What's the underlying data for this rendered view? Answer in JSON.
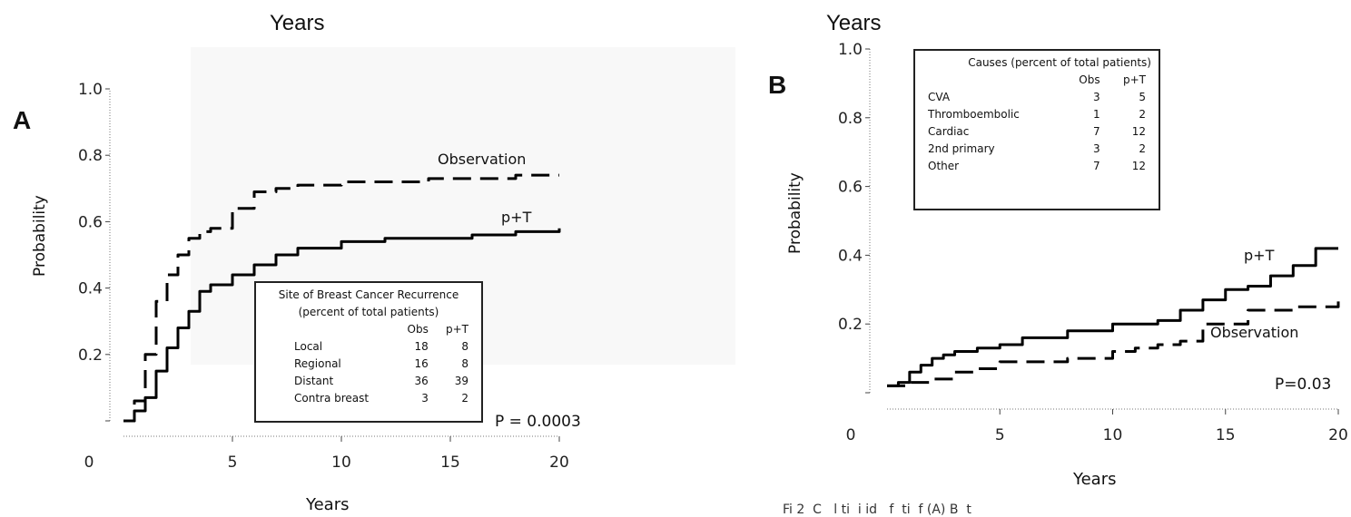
{
  "figure": {
    "top_title_left": "Years",
    "top_title_right": "Years",
    "caption_fragment": "Fi 2  C   l ti  i id   f  ti  f (A) B  t       "
  },
  "chart_data": [
    {
      "panel": "A",
      "type": "line",
      "xlabel": "Years",
      "ylabel": "Probability",
      "xlim": [
        0,
        20
      ],
      "ylim": [
        0,
        1.0
      ],
      "x_ticks": [
        "0",
        "5",
        "10",
        "15",
        "20"
      ],
      "y_ticks": [
        "0.2",
        "0.4",
        "0.6",
        "0.8",
        "1.0"
      ],
      "p_value": "P = 0.0003",
      "series": [
        {
          "name": "Observation",
          "style": "dashed",
          "x": [
            0,
            0.5,
            1,
            1.5,
            2,
            2.5,
            3,
            3.5,
            4,
            5,
            6,
            7,
            8,
            10,
            12,
            14,
            16,
            18,
            20
          ],
          "y": [
            0,
            0.06,
            0.2,
            0.36,
            0.44,
            0.5,
            0.55,
            0.57,
            0.58,
            0.64,
            0.69,
            0.7,
            0.71,
            0.72,
            0.72,
            0.73,
            0.73,
            0.74,
            0.74
          ]
        },
        {
          "name": "p+T",
          "style": "solid",
          "x": [
            0,
            0.5,
            1,
            1.5,
            2,
            2.5,
            3,
            3.5,
            4,
            5,
            6,
            7,
            8,
            10,
            12,
            14,
            16,
            18,
            20
          ],
          "y": [
            0,
            0.03,
            0.07,
            0.15,
            0.22,
            0.28,
            0.33,
            0.39,
            0.41,
            0.44,
            0.47,
            0.5,
            0.52,
            0.54,
            0.55,
            0.55,
            0.56,
            0.57,
            0.58
          ]
        }
      ],
      "legend_box": {
        "title": "Site of Breast Cancer Recurrence",
        "subtitle": "(percent of total patients)",
        "col_obs": "Obs",
        "col_pt": "p+T",
        "rows": [
          {
            "label": "Local",
            "obs": "18",
            "pt": "8"
          },
          {
            "label": "Regional",
            "obs": "16",
            "pt": "8"
          },
          {
            "label": "Distant",
            "obs": "36",
            "pt": "39"
          },
          {
            "label": "Contra breast",
            "obs": "3",
            "pt": "2"
          }
        ]
      }
    },
    {
      "panel": "B",
      "type": "line",
      "xlabel": "Years",
      "ylabel": "Probability",
      "xlim": [
        0,
        20
      ],
      "ylim": [
        0,
        1.0
      ],
      "x_ticks": [
        "0",
        "5",
        "10",
        "15",
        "20"
      ],
      "y_ticks": [
        "0.2",
        "0.4",
        "0.6",
        "0.8",
        "1.0"
      ],
      "p_value": "P=0.03",
      "series": [
        {
          "name": "Observation",
          "style": "dashed",
          "x": [
            0,
            1,
            2,
            3,
            4,
            5,
            6,
            8,
            10,
            11,
            12,
            13,
            14,
            16,
            18,
            20
          ],
          "y": [
            0.02,
            0.03,
            0.04,
            0.06,
            0.07,
            0.09,
            0.09,
            0.1,
            0.12,
            0.13,
            0.14,
            0.15,
            0.2,
            0.24,
            0.25,
            0.28
          ]
        },
        {
          "name": "p+T",
          "style": "solid",
          "x": [
            0,
            0.5,
            1,
            1.5,
            2,
            2.5,
            3,
            4,
            5,
            6,
            8,
            10,
            12,
            13,
            14,
            15,
            16,
            17,
            18,
            19,
            20
          ],
          "y": [
            0.02,
            0.03,
            0.06,
            0.08,
            0.1,
            0.11,
            0.12,
            0.13,
            0.14,
            0.16,
            0.18,
            0.2,
            0.21,
            0.24,
            0.27,
            0.3,
            0.31,
            0.34,
            0.37,
            0.42,
            0.42
          ]
        }
      ],
      "legend_box": {
        "title": "Causes  (percent of total patients)",
        "col_obs": "Obs",
        "col_pt": "p+T",
        "rows": [
          {
            "label": "CVA",
            "obs": "3",
            "pt": "5"
          },
          {
            "label": "Thromboembolic",
            "obs": "1",
            "pt": "2"
          },
          {
            "label": "Cardiac",
            "obs": "7",
            "pt": "12"
          },
          {
            "label": "2nd primary",
            "obs": "3",
            "pt": "2"
          },
          {
            "label": "Other",
            "obs": "7",
            "pt": "12"
          }
        ]
      }
    }
  ]
}
